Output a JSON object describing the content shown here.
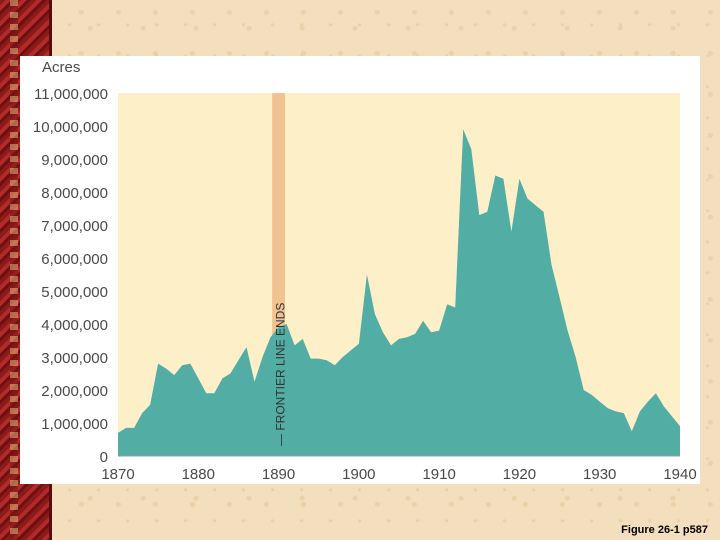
{
  "caption": "Figure 26-1 p587",
  "chart_data": {
    "type": "area",
    "ylabel": "Acres",
    "xlim": [
      1870,
      1940
    ],
    "ylim": [
      0,
      11000000
    ],
    "x_ticks": [
      1870,
      1880,
      1890,
      1900,
      1910,
      1920,
      1930,
      1940
    ],
    "y_ticks": [
      0,
      1000000,
      2000000,
      3000000,
      4000000,
      5000000,
      6000000,
      7000000,
      8000000,
      9000000,
      10000000,
      11000000
    ],
    "y_tick_labels": [
      "0",
      "1,000,000",
      "2,000,000",
      "3,000,000",
      "4,000,000",
      "5,000,000",
      "6,000,000",
      "7,000,000",
      "8,000,000",
      "9,000,000",
      "10,000,000",
      "11,000,000"
    ],
    "annotation": {
      "text": "FRONTIER LINE ENDS",
      "x_range": [
        1889.2,
        1890.8
      ]
    },
    "colors": {
      "area": "#52ada5",
      "plot_background": "#fdefc8",
      "band": "#f1c391"
    },
    "series": [
      {
        "x": [
          1870,
          1871,
          1872,
          1873,
          1874,
          1875,
          1876,
          1877,
          1878,
          1879,
          1880,
          1881,
          1882,
          1883,
          1884,
          1885,
          1886,
          1887,
          1888,
          1889,
          1890,
          1891,
          1892,
          1893,
          1894,
          1895,
          1896,
          1897,
          1898,
          1899,
          1900,
          1901,
          1902,
          1903,
          1904,
          1905,
          1906,
          1907,
          1908,
          1909,
          1910,
          1911,
          1912,
          1913,
          1914,
          1915,
          1916,
          1917,
          1918,
          1919,
          1920,
          1921,
          1922,
          1923,
          1924,
          1925,
          1926,
          1927,
          1928,
          1929,
          1930,
          1931,
          1932,
          1933,
          1934,
          1935,
          1936,
          1937,
          1938,
          1939,
          1940
        ],
        "values": [
          700000,
          850000,
          850000,
          1300000,
          1550000,
          2800000,
          2650000,
          2450000,
          2750000,
          2800000,
          2350000,
          1900000,
          1900000,
          2350000,
          2500000,
          2900000,
          3300000,
          2250000,
          3000000,
          3600000,
          3900000,
          4000000,
          3350000,
          3550000,
          2950000,
          2950000,
          2900000,
          2750000,
          3000000,
          3200000,
          3400000,
          5500000,
          4300000,
          3750000,
          3350000,
          3550000,
          3600000,
          3700000,
          4100000,
          3750000,
          3800000,
          4600000,
          4500000,
          9900000,
          9300000,
          7300000,
          7400000,
          8500000,
          8400000,
          6800000,
          8400000,
          7800000,
          7600000,
          7400000,
          5800000,
          4800000,
          3800000,
          3000000,
          2000000,
          1850000,
          1650000,
          1450000,
          1350000,
          1300000,
          750000,
          1350000,
          1650000,
          1900000,
          1500000,
          1200000,
          900000
        ]
      }
    ]
  }
}
